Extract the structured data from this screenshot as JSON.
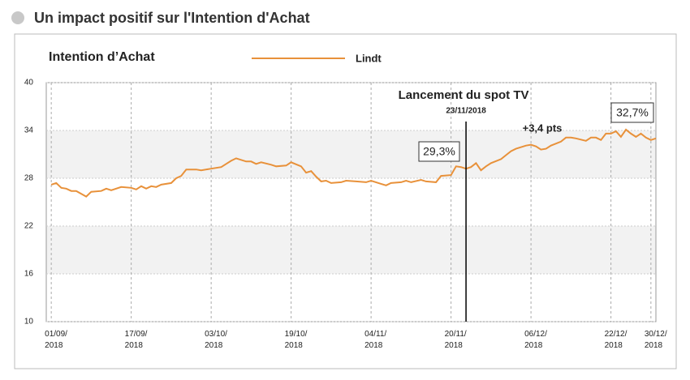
{
  "header": {
    "title": "Un impact positif sur l'Intention d'Achat"
  },
  "chart_data": {
    "type": "line",
    "title": "Intention d’Achat",
    "x": [
      "2018-09-01",
      "2018-09-02",
      "2018-09-03",
      "2018-09-04",
      "2018-09-05",
      "2018-09-06",
      "2018-09-08",
      "2018-09-09",
      "2018-09-11",
      "2018-09-12",
      "2018-09-13",
      "2018-09-15",
      "2018-09-17",
      "2018-09-18",
      "2018-09-19",
      "2018-09-20",
      "2018-09-21",
      "2018-09-22",
      "2018-09-23",
      "2018-09-25",
      "2018-09-26",
      "2018-09-27",
      "2018-09-28",
      "2018-09-30",
      "2018-10-01",
      "2018-10-03",
      "2018-10-05",
      "2018-10-06",
      "2018-10-07",
      "2018-10-08",
      "2018-10-10",
      "2018-10-11",
      "2018-10-12",
      "2018-10-13",
      "2018-10-15",
      "2018-10-16",
      "2018-10-18",
      "2018-10-19",
      "2018-10-21",
      "2018-10-22",
      "2018-10-23",
      "2018-10-24",
      "2018-10-25",
      "2018-10-26",
      "2018-10-27",
      "2018-10-29",
      "2018-10-30",
      "2018-11-01",
      "2018-11-03",
      "2018-11-04",
      "2018-11-06",
      "2018-11-07",
      "2018-11-08",
      "2018-11-10",
      "2018-11-11",
      "2018-11-12",
      "2018-11-14",
      "2018-11-15",
      "2018-11-17",
      "2018-11-18",
      "2018-11-20",
      "2018-11-21",
      "2018-11-22",
      "2018-11-23",
      "2018-11-24",
      "2018-11-25",
      "2018-11-26",
      "2018-11-27",
      "2018-11-28",
      "2018-11-30",
      "2018-12-01",
      "2018-12-02",
      "2018-12-03",
      "2018-12-05",
      "2018-12-06",
      "2018-12-07",
      "2018-12-08",
      "2018-12-09",
      "2018-12-10",
      "2018-12-12",
      "2018-12-13",
      "2018-12-14",
      "2018-12-15",
      "2018-12-17",
      "2018-12-18",
      "2018-12-19",
      "2018-12-20",
      "2018-12-21",
      "2018-12-22",
      "2018-12-23",
      "2018-12-24",
      "2018-12-25",
      "2018-12-26",
      "2018-12-27",
      "2018-12-28",
      "2018-12-29",
      "2018-12-30",
      "2018-12-31"
    ],
    "series": [
      {
        "name": "Lindt",
        "color": "#e8913a",
        "values": [
          27.2,
          27.4,
          26.8,
          26.7,
          26.4,
          26.4,
          25.7,
          26.3,
          26.4,
          26.7,
          26.5,
          26.9,
          26.8,
          26.6,
          27.0,
          26.7,
          27.0,
          26.9,
          27.2,
          27.4,
          28.0,
          28.3,
          29.1,
          29.1,
          29.0,
          29.2,
          29.4,
          29.8,
          30.2,
          30.5,
          30.1,
          30.1,
          29.8,
          30.0,
          29.7,
          29.5,
          29.6,
          30.0,
          29.5,
          28.7,
          28.9,
          28.2,
          27.6,
          27.7,
          27.4,
          27.5,
          27.7,
          27.6,
          27.5,
          27.7,
          27.3,
          27.1,
          27.4,
          27.5,
          27.7,
          27.5,
          27.8,
          27.6,
          27.5,
          28.3,
          28.4,
          29.5,
          29.4,
          29.2,
          29.4,
          29.9,
          29.0,
          29.5,
          29.9,
          30.4,
          30.9,
          31.4,
          31.7,
          32.1,
          32.2,
          32.0,
          31.6,
          31.7,
          32.1,
          32.6,
          33.1,
          33.1,
          33.0,
          32.7,
          33.1,
          33.1,
          32.8,
          33.6,
          33.6,
          33.9,
          33.2,
          34.1,
          33.6,
          33.2,
          33.6,
          33.1,
          32.8,
          33.0
        ]
      }
    ],
    "xlim": [
      "2018-08-31",
      "2018-12-31"
    ],
    "xticks": [
      {
        "value": "2018-09-01",
        "label": "01/09/\n2018"
      },
      {
        "value": "2018-09-17",
        "label": "17/09/\n2018"
      },
      {
        "value": "2018-10-03",
        "label": "03/10/\n2018"
      },
      {
        "value": "2018-10-19",
        "label": "19/10/\n2018"
      },
      {
        "value": "2018-11-04",
        "label": "04/11/\n2018"
      },
      {
        "value": "2018-11-20",
        "label": "20/11/\n2018"
      },
      {
        "value": "2018-12-06",
        "label": "06/12/\n2018"
      },
      {
        "value": "2018-12-22",
        "label": "22/12/\n2018"
      },
      {
        "value": "2018-12-30",
        "label": "30/12/\n2018"
      }
    ],
    "ylim": [
      10,
      40
    ],
    "yticks": [
      10,
      16,
      22,
      28,
      34,
      40
    ],
    "grid": true,
    "band_fill": "#f2f2f2",
    "event": {
      "x": "2018-11-23",
      "label": "Lancement du spot TV",
      "date_label": "23/11/2018"
    },
    "annotations": [
      "29,3%",
      "+3,4 pts",
      "32,7%"
    ]
  }
}
